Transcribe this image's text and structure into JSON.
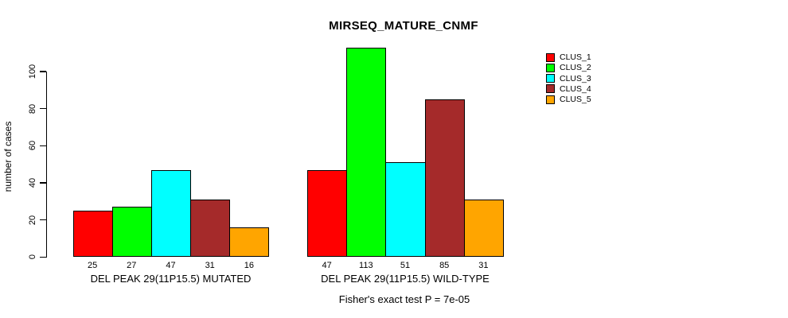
{
  "chart_data": {
    "type": "bar",
    "title": "MIRSEQ_MATURE_CNMF",
    "ylabel": "number of cases",
    "xlabel": "",
    "ylim": [
      0,
      113
    ],
    "yticks": [
      0,
      20,
      40,
      60,
      80,
      100
    ],
    "grid": false,
    "background_color": "#ffffff",
    "axis_color": "#000000",
    "series": [
      {
        "name": "CLUS_1",
        "color": "#ff0000"
      },
      {
        "name": "CLUS_2",
        "color": "#00ff00"
      },
      {
        "name": "CLUS_3",
        "color": "#00ffff"
      },
      {
        "name": "CLUS_4",
        "color": "#a52a2a"
      },
      {
        "name": "CLUS_5",
        "color": "#ffa500"
      }
    ],
    "groups": [
      {
        "label": "DEL PEAK 29(11P15.5) MUTATED",
        "values": [
          25,
          27,
          47,
          31,
          16
        ]
      },
      {
        "label": "DEL PEAK 29(11P15.5) WILD-TYPE",
        "values": [
          47,
          113,
          51,
          85,
          31
        ]
      }
    ],
    "bar_value_labels": true,
    "legend_position": "top-right",
    "annotation": "Fisher's exact test P = 7e-05"
  }
}
